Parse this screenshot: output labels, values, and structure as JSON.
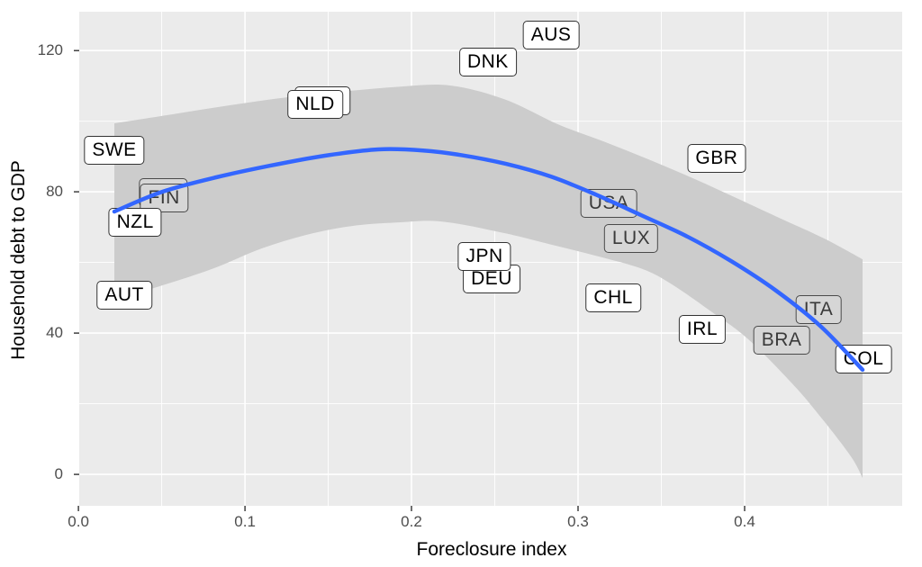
{
  "chart_data": {
    "type": "scatter",
    "title": "",
    "xlabel": "Foreclosure index",
    "ylabel": "Household debt to GDP",
    "legend": "none",
    "grid": "major-and-minor-white-on-gray",
    "x_range": [
      0.0005,
      0.4946
    ],
    "y_range": [
      -8.9,
      131.0
    ],
    "x_ticks": {
      "values": [
        0,
        0.1,
        0.2,
        0.3,
        0.4
      ],
      "labels": [
        "0.0",
        "0.1",
        "0.2",
        "0.3",
        "0.4"
      ],
      "minor": [
        0.05,
        0.15,
        0.25,
        0.35,
        0.45
      ]
    },
    "y_ticks": {
      "values": [
        0,
        40,
        80,
        120
      ],
      "labels": [
        "0",
        "40",
        "80",
        "120"
      ],
      "minor": [
        20,
        60,
        100
      ]
    },
    "points": [
      {
        "code": "SWE",
        "x": 0.0216,
        "y": 91.7,
        "style": "plain"
      },
      {
        "code": "AUT",
        "x": 0.0276,
        "y": 50.7,
        "style": "plain"
      },
      {
        "code": "NLD",
        "x": 0.1422,
        "y": 104.7,
        "style": "plain",
        "shadow": [
          8,
          -4
        ]
      },
      {
        "code": "DNK",
        "x": 0.2459,
        "y": 116.7,
        "style": "plain"
      },
      {
        "code": "AUS",
        "x": 0.2838,
        "y": 124.3,
        "style": "plain"
      },
      {
        "code": "DEU",
        "x": 0.2481,
        "y": 55.3,
        "style": "plain"
      },
      {
        "code": "JPN",
        "x": 0.2438,
        "y": 61.7,
        "style": "plain"
      },
      {
        "code": "GBR",
        "x": 0.3832,
        "y": 89.4,
        "style": "plain"
      },
      {
        "code": "CHL",
        "x": 0.3211,
        "y": 49.9,
        "style": "plain"
      },
      {
        "code": "IRL",
        "x": 0.3746,
        "y": 41.0,
        "style": "plain"
      },
      {
        "code": "COL",
        "x": 0.4714,
        "y": 32.6,
        "style": "plain"
      },
      {
        "code": "NZL",
        "x": 0.0341,
        "y": 71.3,
        "style": "plain"
      },
      {
        "code": "FIN",
        "x": 0.0514,
        "y": 78.2,
        "style": "shaded",
        "shadow": [
          -1,
          -6
        ]
      },
      {
        "code": "USA",
        "x": 0.3184,
        "y": 76.7,
        "style": "shaded"
      },
      {
        "code": "LUX",
        "x": 0.3319,
        "y": 66.8,
        "style": "shaded"
      },
      {
        "code": "ITA",
        "x": 0.4443,
        "y": 46.6,
        "style": "shaded"
      },
      {
        "code": "BRA",
        "x": 0.4222,
        "y": 38.0,
        "style": "shaded"
      }
    ],
    "smooth_line": [
      [
        0.0216,
        74.4
      ],
      [
        0.0503,
        80.0
      ],
      [
        0.0827,
        84.1
      ],
      [
        0.1151,
        87.4
      ],
      [
        0.1476,
        90.2
      ],
      [
        0.18,
        92.0
      ],
      [
        0.207,
        91.7
      ],
      [
        0.2297,
        90.4
      ],
      [
        0.2568,
        87.9
      ],
      [
        0.2838,
        84.3
      ],
      [
        0.3108,
        79.2
      ],
      [
        0.3378,
        73.4
      ],
      [
        0.3649,
        67.5
      ],
      [
        0.3919,
        60.4
      ],
      [
        0.4189,
        52.0
      ],
      [
        0.4459,
        41.8
      ],
      [
        0.4708,
        29.6
      ]
    ],
    "confidence_band": {
      "top": [
        [
          0.0216,
          99.4
        ],
        [
          0.0557,
          101.9
        ],
        [
          0.0908,
          104.5
        ],
        [
          0.1259,
          106.8
        ],
        [
          0.1611,
          108.5
        ],
        [
          0.1935,
          109.8
        ],
        [
          0.2232,
          110.1
        ],
        [
          0.2557,
          106.2
        ],
        [
          0.2881,
          99.1
        ],
        [
          0.3151,
          94.3
        ],
        [
          0.3422,
          89.2
        ],
        [
          0.3692,
          83.8
        ],
        [
          0.3962,
          78.0
        ],
        [
          0.4232,
          72.1
        ],
        [
          0.4476,
          66.8
        ],
        [
          0.4708,
          60.9
        ]
      ],
      "bottom": [
        [
          0.0216,
          49.4
        ],
        [
          0.0557,
          54.3
        ],
        [
          0.0827,
          58.6
        ],
        [
          0.1097,
          63.9
        ],
        [
          0.1368,
          67.8
        ],
        [
          0.1638,
          70.3
        ],
        [
          0.1908,
          71.3
        ],
        [
          0.2178,
          71.6
        ],
        [
          0.2557,
          68.3
        ],
        [
          0.2827,
          65.2
        ],
        [
          0.3108,
          61.9
        ],
        [
          0.3378,
          58.3
        ],
        [
          0.3557,
          54.0
        ],
        [
          0.38,
          46.1
        ],
        [
          0.4016,
          38.5
        ],
        [
          0.4286,
          25.7
        ],
        [
          0.4459,
          16.1
        ],
        [
          0.4638,
          5.1
        ],
        [
          0.4708,
          -1.0
        ]
      ]
    },
    "colors": {
      "panel_bg": "#EBEBEB",
      "gridline": "#FFFFFF",
      "band": "#CCCCCC",
      "line": "#3366FF",
      "label_fill": "#FFFFFF",
      "label_shaded_fill": "#D6D6D6",
      "label_border": "#333333",
      "tick_text": "#4D4D4D",
      "axis_title": "#000000"
    }
  }
}
